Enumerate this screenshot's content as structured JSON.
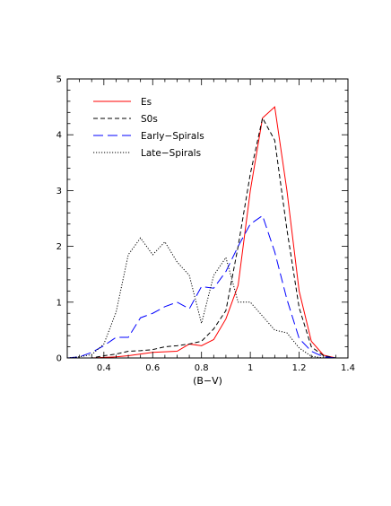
{
  "chart_data": {
    "type": "line",
    "title": "",
    "xlabel": "(B−V)",
    "ylabel": "",
    "xlim": [
      0.25,
      1.4
    ],
    "ylim": [
      0,
      5
    ],
    "x_ticks": [
      "0.4",
      "0.6",
      "0.8",
      "1",
      "1.2",
      "1.4"
    ],
    "y_ticks": [
      "0",
      "1",
      "2",
      "3",
      "4",
      "5"
    ],
    "grid": false,
    "legend_position": "top-left",
    "series": [
      {
        "name": "Es",
        "color": "#ff0000",
        "dash": "solid",
        "x": [
          0.25,
          0.3,
          0.35,
          0.4,
          0.45,
          0.5,
          0.55,
          0.6,
          0.65,
          0.7,
          0.75,
          0.8,
          0.85,
          0.9,
          0.95,
          1.0,
          1.05,
          1.1,
          1.15,
          1.2,
          1.25,
          1.3,
          1.35,
          1.4
        ],
        "y": [
          0.0,
          0.0,
          0.0,
          0.01,
          0.02,
          0.04,
          0.07,
          0.1,
          0.11,
          0.12,
          0.25,
          0.22,
          0.33,
          0.7,
          1.3,
          3.0,
          4.3,
          4.5,
          3.0,
          1.2,
          0.3,
          0.05,
          0.0,
          0.0
        ]
      },
      {
        "name": "S0s",
        "color": "#000000",
        "dash": "short-dash",
        "x": [
          0.25,
          0.3,
          0.35,
          0.4,
          0.45,
          0.5,
          0.55,
          0.6,
          0.65,
          0.7,
          0.75,
          0.8,
          0.85,
          0.9,
          0.95,
          1.0,
          1.05,
          1.1,
          1.15,
          1.2,
          1.25,
          1.3,
          1.35,
          1.4
        ],
        "y": [
          0.0,
          0.0,
          0.0,
          0.04,
          0.07,
          0.12,
          0.13,
          0.15,
          0.2,
          0.22,
          0.25,
          0.3,
          0.52,
          0.85,
          2.0,
          3.3,
          4.3,
          3.9,
          2.3,
          0.9,
          0.2,
          0.04,
          0.0,
          0.0
        ]
      },
      {
        "name": "Early−Spirals",
        "color": "#0000ff",
        "dash": "long-dash",
        "x": [
          0.25,
          0.3,
          0.35,
          0.4,
          0.45,
          0.5,
          0.55,
          0.6,
          0.65,
          0.7,
          0.75,
          0.8,
          0.85,
          0.9,
          0.95,
          1.0,
          1.05,
          1.1,
          1.15,
          1.2,
          1.25,
          1.3,
          1.35,
          1.4
        ],
        "y": [
          0.0,
          0.02,
          0.1,
          0.22,
          0.37,
          0.37,
          0.72,
          0.8,
          0.92,
          1.0,
          0.88,
          1.28,
          1.25,
          1.55,
          2.0,
          2.4,
          2.55,
          1.9,
          1.05,
          0.35,
          0.12,
          0.02,
          0.0,
          0.0
        ]
      },
      {
        "name": "Late−Spirals",
        "color": "#000000",
        "dash": "dotted",
        "x": [
          0.25,
          0.3,
          0.35,
          0.4,
          0.45,
          0.5,
          0.55,
          0.6,
          0.65,
          0.7,
          0.75,
          0.8,
          0.85,
          0.9,
          0.95,
          1.0,
          1.05,
          1.1,
          1.15,
          1.2,
          1.25,
          1.3,
          1.35,
          1.4
        ],
        "y": [
          0.0,
          0.02,
          0.06,
          0.25,
          0.82,
          1.85,
          2.15,
          1.85,
          2.08,
          1.72,
          1.48,
          0.62,
          1.48,
          1.8,
          1.0,
          1.0,
          0.75,
          0.5,
          0.45,
          0.18,
          0.03,
          0.0,
          0.0,
          0.0
        ]
      }
    ]
  }
}
